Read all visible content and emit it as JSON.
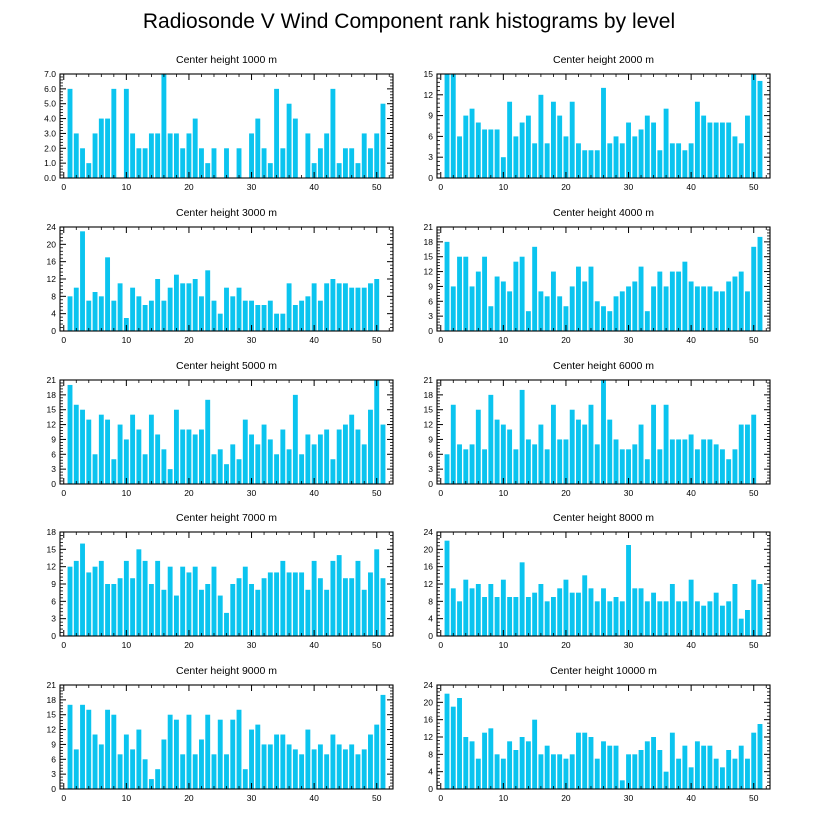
{
  "title": "Radiosonde V Wind Component rank histograms by level",
  "bar_color": "#0bc4ef",
  "chart_data": [
    {
      "type": "bar",
      "title": "Center height 1000 m",
      "ylim": [
        0,
        7
      ],
      "yticks": [
        "0.0",
        "1.0",
        "2.0",
        "3.0",
        "4.0",
        "5.0",
        "6.0",
        "7.0"
      ],
      "ytick_values": [
        0,
        1,
        2,
        3,
        4,
        5,
        6,
        7
      ],
      "xticks": [
        0,
        10,
        20,
        30,
        40,
        50
      ],
      "xlim": [
        -0.6,
        52.6
      ],
      "x": [
        1,
        2,
        3,
        4,
        5,
        6,
        7,
        8,
        9,
        10,
        11,
        12,
        13,
        14,
        15,
        16,
        17,
        18,
        19,
        20,
        21,
        22,
        23,
        24,
        25,
        26,
        27,
        28,
        29,
        30,
        31,
        32,
        33,
        34,
        35,
        36,
        37,
        38,
        39,
        40,
        41,
        42,
        43,
        44,
        45,
        46,
        47,
        48,
        49,
        50,
        51
      ],
      "values": [
        6,
        3,
        2,
        1,
        3,
        4,
        4,
        6,
        0,
        6,
        3,
        2,
        2,
        3,
        3,
        7,
        3,
        3,
        2,
        3,
        4,
        2,
        1,
        2,
        0,
        2,
        0,
        2,
        0,
        3,
        4,
        2,
        1,
        6,
        2,
        5,
        4,
        0,
        3,
        1,
        2,
        3,
        6,
        1,
        2,
        2,
        1,
        3,
        2,
        3,
        5
      ]
    },
    {
      "type": "bar",
      "title": "Center height 2000 m",
      "ylim": [
        0,
        15
      ],
      "yticks": [
        "0",
        "3",
        "6",
        "9",
        "12",
        "15"
      ],
      "ytick_values": [
        0,
        3,
        6,
        9,
        12,
        15
      ],
      "xticks": [
        0,
        10,
        20,
        30,
        40,
        50
      ],
      "xlim": [
        -0.6,
        52.6
      ],
      "x": [
        1,
        2,
        3,
        4,
        5,
        6,
        7,
        8,
        9,
        10,
        11,
        12,
        13,
        14,
        15,
        16,
        17,
        18,
        19,
        20,
        21,
        22,
        23,
        24,
        25,
        26,
        27,
        28,
        29,
        30,
        31,
        32,
        33,
        34,
        35,
        36,
        37,
        38,
        39,
        40,
        41,
        42,
        43,
        44,
        45,
        46,
        47,
        48,
        49,
        50,
        51
      ],
      "values": [
        15,
        15,
        6,
        9,
        10,
        8,
        7,
        7,
        7,
        3,
        11,
        6,
        8,
        9,
        5,
        12,
        5,
        11,
        9,
        6,
        11,
        5,
        4,
        4,
        4,
        13,
        5,
        6,
        5,
        8,
        6,
        7,
        9,
        8,
        4,
        10,
        5,
        5,
        4,
        5,
        11,
        9,
        8,
        8,
        8,
        8,
        6,
        5,
        9,
        15,
        14
      ]
    },
    {
      "type": "bar",
      "title": "Center height 3000 m",
      "ylim": [
        0,
        24
      ],
      "yticks": [
        "0",
        "4",
        "8",
        "12",
        "16",
        "20",
        "24"
      ],
      "ytick_values": [
        0,
        4,
        8,
        12,
        16,
        20,
        24
      ],
      "xticks": [
        0,
        10,
        20,
        30,
        40,
        50
      ],
      "xlim": [
        -0.6,
        52.6
      ],
      "x": [
        1,
        2,
        3,
        4,
        5,
        6,
        7,
        8,
        9,
        10,
        11,
        12,
        13,
        14,
        15,
        16,
        17,
        18,
        19,
        20,
        21,
        22,
        23,
        24,
        25,
        26,
        27,
        28,
        29,
        30,
        31,
        32,
        33,
        34,
        35,
        36,
        37,
        38,
        39,
        40,
        41,
        42,
        43,
        44,
        45,
        46,
        47,
        48,
        49,
        50,
        51
      ],
      "values": [
        8,
        10,
        23,
        7,
        9,
        8,
        17,
        7,
        11,
        3,
        10,
        8,
        6,
        7,
        12,
        7,
        10,
        13,
        11,
        11,
        12,
        8,
        14,
        7,
        4,
        10,
        8,
        10,
        7,
        7,
        6,
        6,
        7,
        4,
        4,
        11,
        6,
        7,
        8,
        11,
        7,
        11,
        12,
        11,
        11,
        10,
        10,
        10,
        11,
        12,
        0
      ]
    },
    {
      "type": "bar",
      "title": "Center height 4000 m",
      "ylim": [
        0,
        21
      ],
      "yticks": [
        "0",
        "3",
        "6",
        "9",
        "12",
        "15",
        "18",
        "21"
      ],
      "ytick_values": [
        0,
        3,
        6,
        9,
        12,
        15,
        18,
        21
      ],
      "xticks": [
        0,
        10,
        20,
        30,
        40,
        50
      ],
      "xlim": [
        -0.6,
        52.6
      ],
      "x": [
        1,
        2,
        3,
        4,
        5,
        6,
        7,
        8,
        9,
        10,
        11,
        12,
        13,
        14,
        15,
        16,
        17,
        18,
        19,
        20,
        21,
        22,
        23,
        24,
        25,
        26,
        27,
        28,
        29,
        30,
        31,
        32,
        33,
        34,
        35,
        36,
        37,
        38,
        39,
        40,
        41,
        42,
        43,
        44,
        45,
        46,
        47,
        48,
        49,
        50,
        51
      ],
      "values": [
        18,
        9,
        15,
        15,
        9,
        12,
        15,
        5,
        11,
        10,
        8,
        14,
        15,
        4,
        17,
        8,
        7,
        12,
        7,
        5,
        9,
        13,
        10,
        13,
        6,
        5,
        4,
        7,
        8,
        9,
        10,
        13,
        4,
        9,
        12,
        9,
        12,
        12,
        14,
        10,
        9,
        9,
        9,
        8,
        8,
        10,
        11,
        12,
        8,
        17,
        19
      ]
    },
    {
      "type": "bar",
      "title": "Center height 5000 m",
      "ylim": [
        0,
        21
      ],
      "yticks": [
        "0",
        "3",
        "6",
        "9",
        "12",
        "15",
        "18",
        "21"
      ],
      "ytick_values": [
        0,
        3,
        6,
        9,
        12,
        15,
        18,
        21
      ],
      "xticks": [
        0,
        10,
        20,
        30,
        40,
        50
      ],
      "xlim": [
        -0.6,
        52.6
      ],
      "x": [
        1,
        2,
        3,
        4,
        5,
        6,
        7,
        8,
        9,
        10,
        11,
        12,
        13,
        14,
        15,
        16,
        17,
        18,
        19,
        20,
        21,
        22,
        23,
        24,
        25,
        26,
        27,
        28,
        29,
        30,
        31,
        32,
        33,
        34,
        35,
        36,
        37,
        38,
        39,
        40,
        41,
        42,
        43,
        44,
        45,
        46,
        47,
        48,
        49,
        50,
        51
      ],
      "values": [
        20,
        16,
        15,
        13,
        6,
        14,
        13,
        5,
        12,
        9,
        14,
        11,
        6,
        14,
        10,
        7,
        3,
        15,
        11,
        11,
        10,
        11,
        17,
        6,
        7,
        4,
        8,
        5,
        13,
        10,
        8,
        12,
        9,
        6,
        11,
        7,
        18,
        6,
        10,
        8,
        10,
        11,
        5,
        11,
        12,
        14,
        11,
        8,
        15,
        21,
        12
      ]
    },
    {
      "type": "bar",
      "title": "Center height 6000 m",
      "ylim": [
        0,
        21
      ],
      "yticks": [
        "0",
        "3",
        "6",
        "9",
        "12",
        "15",
        "18",
        "21"
      ],
      "ytick_values": [
        0,
        3,
        6,
        9,
        12,
        15,
        18,
        21
      ],
      "xticks": [
        0,
        10,
        20,
        30,
        40,
        50
      ],
      "xlim": [
        -0.6,
        52.6
      ],
      "x": [
        1,
        2,
        3,
        4,
        5,
        6,
        7,
        8,
        9,
        10,
        11,
        12,
        13,
        14,
        15,
        16,
        17,
        18,
        19,
        20,
        21,
        22,
        23,
        24,
        25,
        26,
        27,
        28,
        29,
        30,
        31,
        32,
        33,
        34,
        35,
        36,
        37,
        38,
        39,
        40,
        41,
        42,
        43,
        44,
        45,
        46,
        47,
        48,
        49,
        50,
        51
      ],
      "values": [
        6,
        16,
        8,
        7,
        8,
        15,
        7,
        18,
        13,
        12,
        11,
        7,
        19,
        9,
        8,
        12,
        7,
        16,
        9,
        9,
        15,
        13,
        12,
        16,
        8,
        21,
        13,
        9,
        7,
        7,
        8,
        12,
        5,
        16,
        7,
        16,
        9,
        9,
        9,
        10,
        7,
        9,
        9,
        8,
        7,
        5,
        7,
        12,
        12,
        14,
        0
      ]
    },
    {
      "type": "bar",
      "title": "Center height 7000 m",
      "ylim": [
        0,
        18
      ],
      "yticks": [
        "0",
        "3",
        "6",
        "9",
        "12",
        "15",
        "18"
      ],
      "ytick_values": [
        0,
        3,
        6,
        9,
        12,
        15,
        18
      ],
      "xticks": [
        0,
        10,
        20,
        30,
        40,
        50
      ],
      "xlim": [
        -0.6,
        52.6
      ],
      "x": [
        1,
        2,
        3,
        4,
        5,
        6,
        7,
        8,
        9,
        10,
        11,
        12,
        13,
        14,
        15,
        16,
        17,
        18,
        19,
        20,
        21,
        22,
        23,
        24,
        25,
        26,
        27,
        28,
        29,
        30,
        31,
        32,
        33,
        34,
        35,
        36,
        37,
        38,
        39,
        40,
        41,
        42,
        43,
        44,
        45,
        46,
        47,
        48,
        49,
        50,
        51
      ],
      "values": [
        12,
        13,
        16,
        11,
        12,
        13,
        9,
        9,
        10,
        13,
        10,
        15,
        13,
        9,
        13,
        8,
        12,
        7,
        12,
        11,
        12,
        8,
        9,
        12,
        7,
        4,
        9,
        10,
        12,
        9,
        8,
        10,
        11,
        11,
        13,
        11,
        11,
        11,
        8,
        13,
        10,
        8,
        13,
        14,
        10,
        10,
        13,
        8,
        11,
        15,
        10
      ]
    },
    {
      "type": "bar",
      "title": "Center height 8000 m",
      "ylim": [
        0,
        24
      ],
      "yticks": [
        "0",
        "4",
        "8",
        "12",
        "16",
        "20",
        "24"
      ],
      "ytick_values": [
        0,
        4,
        8,
        12,
        16,
        20,
        24
      ],
      "xticks": [
        0,
        10,
        20,
        30,
        40,
        50
      ],
      "xlim": [
        -0.6,
        52.6
      ],
      "x": [
        1,
        2,
        3,
        4,
        5,
        6,
        7,
        8,
        9,
        10,
        11,
        12,
        13,
        14,
        15,
        16,
        17,
        18,
        19,
        20,
        21,
        22,
        23,
        24,
        25,
        26,
        27,
        28,
        29,
        30,
        31,
        32,
        33,
        34,
        35,
        36,
        37,
        38,
        39,
        40,
        41,
        42,
        43,
        44,
        45,
        46,
        47,
        48,
        49,
        50,
        51
      ],
      "values": [
        22,
        11,
        8,
        13,
        11,
        12,
        9,
        12,
        9,
        13,
        9,
        9,
        17,
        9,
        10,
        12,
        8,
        9,
        11,
        13,
        10,
        10,
        14,
        11,
        8,
        11,
        8,
        9,
        8,
        21,
        11,
        11,
        8,
        10,
        8,
        8,
        12,
        8,
        8,
        13,
        8,
        7,
        8,
        10,
        7,
        8,
        12,
        4,
        6,
        13,
        12
      ]
    },
    {
      "type": "bar",
      "title": "Center height 9000 m",
      "ylim": [
        0,
        21
      ],
      "yticks": [
        "0",
        "3",
        "6",
        "9",
        "12",
        "15",
        "18",
        "21"
      ],
      "ytick_values": [
        0,
        3,
        6,
        9,
        12,
        15,
        18,
        21
      ],
      "xticks": [
        0,
        10,
        20,
        30,
        40,
        50
      ],
      "xlim": [
        -0.6,
        52.6
      ],
      "x": [
        1,
        2,
        3,
        4,
        5,
        6,
        7,
        8,
        9,
        10,
        11,
        12,
        13,
        14,
        15,
        16,
        17,
        18,
        19,
        20,
        21,
        22,
        23,
        24,
        25,
        26,
        27,
        28,
        29,
        30,
        31,
        32,
        33,
        34,
        35,
        36,
        37,
        38,
        39,
        40,
        41,
        42,
        43,
        44,
        45,
        46,
        47,
        48,
        49,
        50,
        51
      ],
      "values": [
        17,
        8,
        17,
        16,
        11,
        9,
        16,
        15,
        7,
        11,
        8,
        12,
        6,
        2,
        4,
        10,
        15,
        14,
        7,
        15,
        7,
        10,
        15,
        7,
        14,
        7,
        14,
        16,
        4,
        12,
        13,
        9,
        9,
        11,
        11,
        9,
        8,
        7,
        12,
        8,
        9,
        7,
        11,
        9,
        8,
        9,
        7,
        8,
        11,
        13,
        19
      ]
    },
    {
      "type": "bar",
      "title": "Center height 10000 m",
      "ylim": [
        0,
        24
      ],
      "yticks": [
        "0",
        "4",
        "8",
        "12",
        "16",
        "20",
        "24"
      ],
      "ytick_values": [
        0,
        4,
        8,
        12,
        16,
        20,
        24
      ],
      "xticks": [
        0,
        10,
        20,
        30,
        40,
        50
      ],
      "xlim": [
        -0.6,
        52.6
      ],
      "x": [
        1,
        2,
        3,
        4,
        5,
        6,
        7,
        8,
        9,
        10,
        11,
        12,
        13,
        14,
        15,
        16,
        17,
        18,
        19,
        20,
        21,
        22,
        23,
        24,
        25,
        26,
        27,
        28,
        29,
        30,
        31,
        32,
        33,
        34,
        35,
        36,
        37,
        38,
        39,
        40,
        41,
        42,
        43,
        44,
        45,
        46,
        47,
        48,
        49,
        50,
        51
      ],
      "values": [
        22,
        19,
        21,
        12,
        11,
        7,
        13,
        14,
        8,
        7,
        11,
        9,
        12,
        11,
        16,
        8,
        10,
        8,
        8,
        7,
        8,
        13,
        13,
        12,
        7,
        11,
        10,
        10,
        2,
        8,
        8,
        9,
        11,
        12,
        9,
        4,
        13,
        7,
        10,
        5,
        11,
        10,
        10,
        7,
        5,
        9,
        7,
        10,
        7,
        13,
        15
      ]
    }
  ]
}
